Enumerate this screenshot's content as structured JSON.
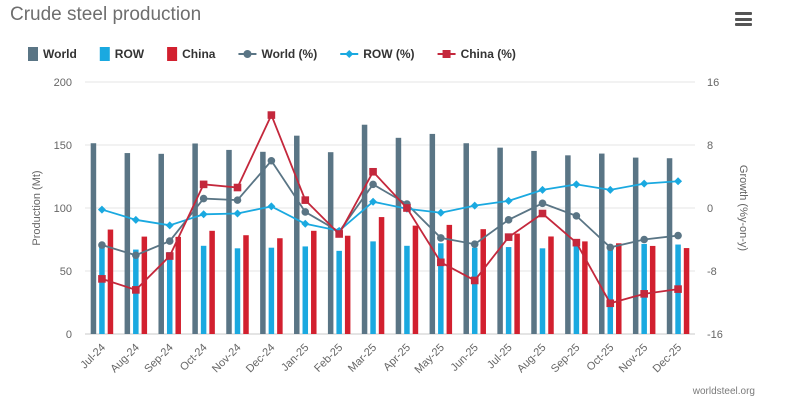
{
  "title": "Crude steel production",
  "menu": {
    "icon": "hamburger-menu-icon"
  },
  "source": "worldsteel.org",
  "chart_data": {
    "type": "bar",
    "categories": [
      "Jul-24",
      "Aug-24",
      "Sep-24",
      "Oct-24",
      "Nov-24",
      "Dec-24",
      "Jan-25",
      "Feb-25",
      "Mar-25",
      "Apr-25",
      "May-25",
      "Jun-25",
      "Jul-25",
      "Aug-25",
      "Sep-25",
      "Oct-25",
      "Nov-25",
      "Dec-25"
    ],
    "series": [
      {
        "name": "World",
        "kind": "bar",
        "axis": "left",
        "color": "#5a7585",
        "values": [
          151.4,
          143.6,
          143.0,
          151.2,
          146.1,
          144.6,
          157.4,
          144.3,
          166.1,
          155.7,
          158.8,
          151.4,
          147.9,
          145.3,
          141.8,
          143.2,
          140.0,
          139.5
        ]
      },
      {
        "name": "ROW",
        "kind": "bar",
        "axis": "left",
        "color": "#1aa9e0",
        "values": [
          69.0,
          67.0,
          65.0,
          70.0,
          68.0,
          68.5,
          69.5,
          66.0,
          73.5,
          70.0,
          72.0,
          68.5,
          69.0,
          68.0,
          70.5,
          71.0,
          71.5,
          71.0
        ]
      },
      {
        "name": "China",
        "kind": "bar",
        "axis": "left",
        "color": "#d2202f",
        "values": [
          82.9,
          77.3,
          77.1,
          81.9,
          78.4,
          76.0,
          81.9,
          78.0,
          92.8,
          86.0,
          86.6,
          83.2,
          79.7,
          77.4,
          73.5,
          72.0,
          69.9,
          68.2
        ]
      },
      {
        "name": "World (%)",
        "kind": "line",
        "axis": "right",
        "color": "#5a7585",
        "values": [
          -4.7,
          -6.0,
          -4.2,
          1.2,
          1.0,
          6.0,
          -0.5,
          -3.0,
          3.0,
          0.5,
          -3.8,
          -4.6,
          -1.5,
          0.6,
          -1.0,
          -5.0,
          -4.0,
          -3.5
        ]
      },
      {
        "name": "ROW (%)",
        "kind": "line",
        "axis": "right",
        "color": "#1aa9e0",
        "values": [
          -0.2,
          -1.5,
          -2.2,
          -0.8,
          -0.7,
          0.2,
          -2.0,
          -2.9,
          0.8,
          -0.1,
          -0.6,
          0.3,
          0.9,
          2.3,
          3.0,
          2.3,
          3.1,
          3.4
        ]
      },
      {
        "name": "China (%)",
        "kind": "line",
        "axis": "right",
        "color": "#c4283c",
        "values": [
          -9.0,
          -10.4,
          -6.1,
          3.0,
          2.6,
          11.8,
          1.0,
          -3.3,
          4.6,
          0.0,
          -6.9,
          -9.2,
          -3.7,
          -0.7,
          -4.4,
          -12.1,
          -10.9,
          -10.3
        ]
      }
    ],
    "y_left": {
      "label": "Production (Mt)",
      "range": [
        0,
        200
      ],
      "ticks": [
        0,
        50,
        100,
        150,
        200
      ]
    },
    "y_right": {
      "label": "Growth (%y-on-y)",
      "range": [
        -16,
        16
      ],
      "ticks": [
        -16,
        -8,
        0,
        8,
        16
      ]
    },
    "legend_position": "top-left",
    "grid": true
  }
}
